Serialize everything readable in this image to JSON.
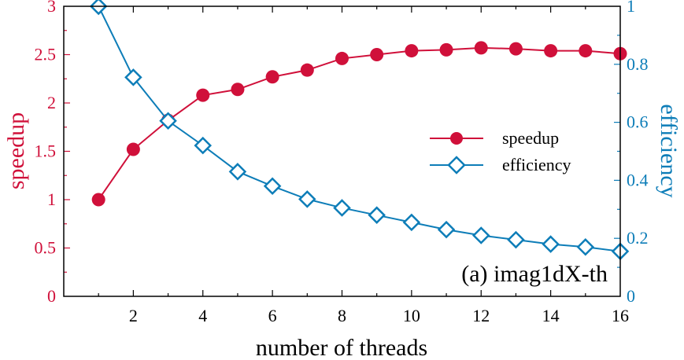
{
  "chart_data": {
    "type": "line",
    "x": [
      1,
      2,
      3,
      4,
      5,
      6,
      7,
      8,
      9,
      10,
      11,
      12,
      13,
      14,
      15,
      16
    ],
    "xlabel": "number of threads",
    "xlim": [
      0,
      16
    ],
    "xticks": [
      "2",
      "4",
      "6",
      "8",
      "10",
      "12",
      "14",
      "16"
    ],
    "y_left": {
      "label": "speedup",
      "lim": [
        0,
        3
      ],
      "ticks": [
        "0",
        "0.5",
        "1",
        "1.5",
        "2",
        "2.5",
        "3"
      ],
      "color": "#d0103a"
    },
    "y_right": {
      "label": "efficiency",
      "lim": [
        0,
        1
      ],
      "ticks": [
        "0",
        "0.2",
        "0.4",
        "0.6",
        "0.8",
        "1"
      ],
      "color": "#0d7db8"
    },
    "series": [
      {
        "name": "speedup",
        "axis": "left",
        "marker": "circle",
        "color": "#d0103a",
        "values": [
          1.0,
          1.52,
          1.82,
          2.08,
          2.14,
          2.27,
          2.34,
          2.46,
          2.5,
          2.54,
          2.55,
          2.57,
          2.56,
          2.54,
          2.54,
          2.51
        ]
      },
      {
        "name": "efficiency",
        "axis": "right",
        "marker": "diamond",
        "color": "#0d7db8",
        "values": [
          1.0,
          0.755,
          0.605,
          0.52,
          0.43,
          0.38,
          0.335,
          0.305,
          0.28,
          0.255,
          0.23,
          0.21,
          0.195,
          0.18,
          0.17,
          0.155
        ]
      }
    ],
    "annotation": "(a) imag1dX-th",
    "legend_position": "right-center",
    "grid": false
  }
}
